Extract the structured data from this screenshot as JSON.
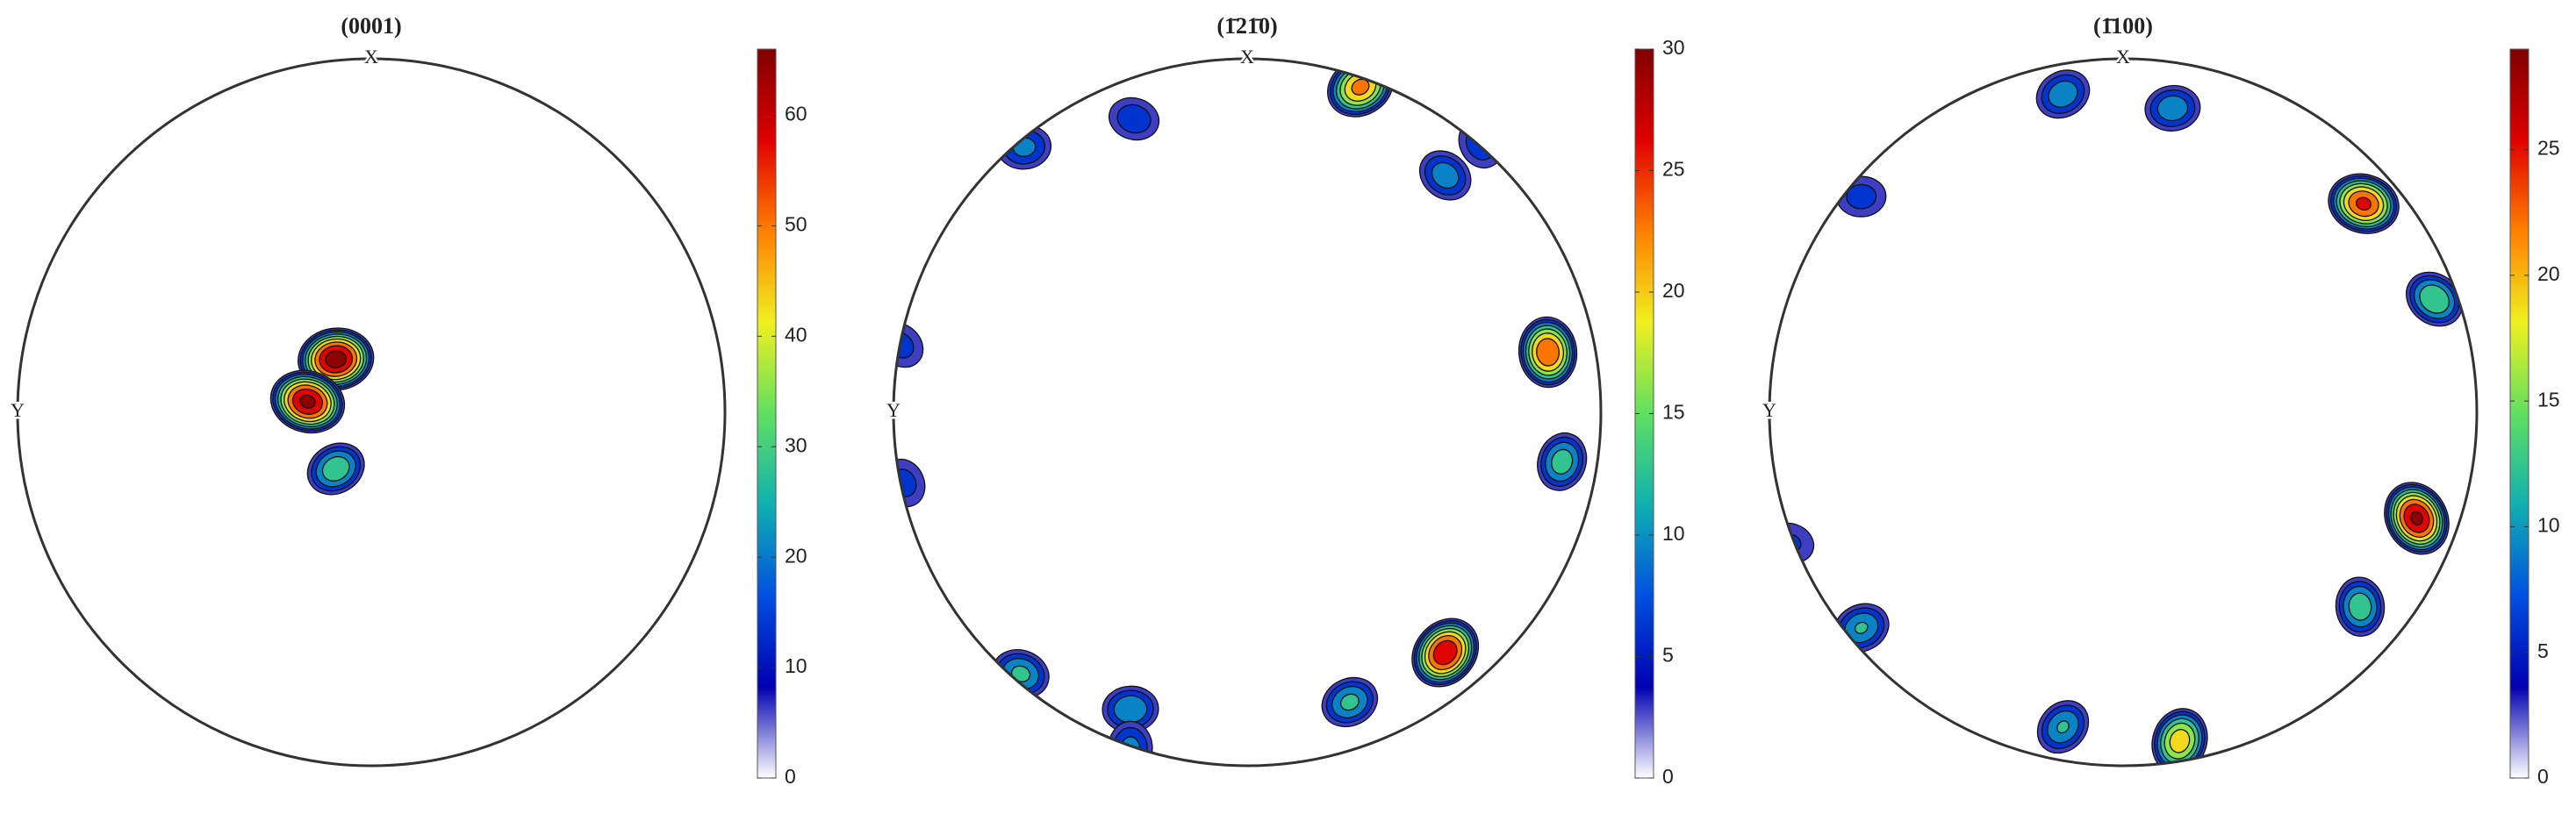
{
  "chart_data": [
    {
      "type": "pole-figure",
      "title": "(0001)",
      "xlabel": "X",
      "ylabel": "Y",
      "colormap": [
        "#ffffff",
        "#0000b0",
        "#0050e0",
        "#10b0b0",
        "#60e060",
        "#f0f020",
        "#ff8000",
        "#e00000",
        "#800000"
      ],
      "ylim": [
        0,
        66
      ],
      "yticks": [
        0,
        10,
        20,
        30,
        40,
        50,
        60
      ],
      "peaks": [
        {
          "x": -0.1,
          "y": -0.16,
          "value": 30
        },
        {
          "x": -0.1,
          "y": 0.15,
          "value": 64
        },
        {
          "x": -0.18,
          "y": 0.03,
          "value": 62
        }
      ]
    },
    {
      "type": "pole-figure",
      "title": "(1̄21̄0)",
      "xlabel": "X",
      "ylabel": "Y",
      "colormap": [
        "#ffffff",
        "#0000b0",
        "#0050e0",
        "#10b0b0",
        "#60e060",
        "#f0f020",
        "#ff8000",
        "#e00000",
        "#800000"
      ],
      "ylim": [
        0,
        30
      ],
      "yticks": [
        0,
        5,
        10,
        15,
        20,
        25,
        30
      ],
      "peaks": [
        {
          "x": 0.32,
          "y": 0.92,
          "value": 22
        },
        {
          "x": -0.63,
          "y": 0.75,
          "value": 9
        },
        {
          "x": -0.32,
          "y": 0.83,
          "value": 7
        },
        {
          "x": 0.56,
          "y": 0.67,
          "value": 10
        },
        {
          "x": 0.66,
          "y": 0.76,
          "value": 7
        },
        {
          "x": 0.85,
          "y": 0.17,
          "value": 24
        },
        {
          "x": 0.89,
          "y": -0.14,
          "value": 13
        },
        {
          "x": 0.56,
          "y": -0.68,
          "value": 27
        },
        {
          "x": 0.29,
          "y": -0.82,
          "value": 12
        },
        {
          "x": -0.33,
          "y": -0.84,
          "value": 11
        },
        {
          "x": -0.64,
          "y": -0.74,
          "value": 12
        },
        {
          "x": -0.98,
          "y": 0.19,
          "value": 6
        },
        {
          "x": -0.97,
          "y": -0.2,
          "value": 6
        },
        {
          "x": -0.33,
          "y": -0.95,
          "value": 9
        }
      ]
    },
    {
      "type": "pole-figure",
      "title": "(1̄100)",
      "xlabel": "X",
      "ylabel": "Y",
      "colormap": [
        "#ffffff",
        "#0000b0",
        "#0050e0",
        "#10b0b0",
        "#60e060",
        "#f0f020",
        "#ff8000",
        "#e00000",
        "#800000"
      ],
      "ylim": [
        0,
        29
      ],
      "yticks": [
        0,
        5,
        10,
        15,
        20,
        25
      ],
      "peaks": [
        {
          "x": -0.17,
          "y": 0.9,
          "value": 10
        },
        {
          "x": 0.14,
          "y": 0.86,
          "value": 10
        },
        {
          "x": 0.68,
          "y": 0.59,
          "value": 24
        },
        {
          "x": 0.88,
          "y": 0.32,
          "value": 14
        },
        {
          "x": 0.83,
          "y": -0.3,
          "value": 27
        },
        {
          "x": 0.67,
          "y": -0.55,
          "value": 13
        },
        {
          "x": 0.16,
          "y": -0.93,
          "value": 19
        },
        {
          "x": -0.17,
          "y": -0.89,
          "value": 11
        },
        {
          "x": -0.74,
          "y": -0.61,
          "value": 11
        },
        {
          "x": -0.74,
          "y": 0.61,
          "value": 6
        },
        {
          "x": -0.94,
          "y": -0.37,
          "value": 5
        }
      ]
    }
  ]
}
